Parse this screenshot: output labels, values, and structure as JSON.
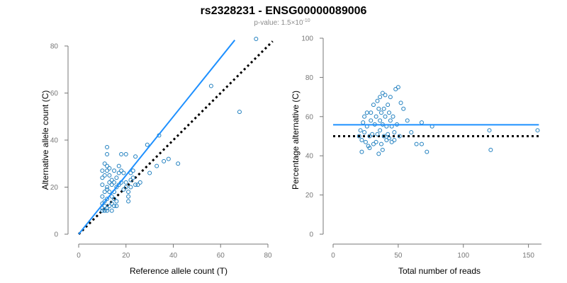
{
  "header": {
    "title": "rs2328231 - ENSG00000089006",
    "pvalue_prefix": "p-value: 1.5×10",
    "pvalue_exponent": "-10"
  },
  "colors": {
    "points": "#1f7fbf",
    "fit_line": "#1e90ff",
    "reference_line": "#000000",
    "axis": "#777777"
  },
  "chart_data": [
    {
      "type": "scatter",
      "title": "",
      "xlabel": "Reference allele count (T)",
      "ylabel": "Alternative allele count (C)",
      "xlim": [
        0,
        80
      ],
      "ylim": [
        0,
        80
      ],
      "xticks": [
        0,
        20,
        40,
        60,
        80
      ],
      "yticks": [
        0,
        20,
        40,
        60,
        80
      ],
      "x_tick_labels": [
        "0",
        "20",
        "40",
        "60",
        "80"
      ],
      "y_tick_labels": [
        "0",
        "20",
        "40",
        "60",
        "80"
      ],
      "points": [
        [
          10,
          10
        ],
        [
          10,
          11
        ],
        [
          11,
          10
        ],
        [
          11,
          12
        ],
        [
          12,
          10
        ],
        [
          12,
          11
        ],
        [
          10,
          13
        ],
        [
          11,
          14
        ],
        [
          13,
          12
        ],
        [
          12,
          15
        ],
        [
          10,
          16
        ],
        [
          11,
          18
        ],
        [
          12,
          20
        ],
        [
          10,
          21
        ],
        [
          10,
          24
        ],
        [
          11,
          25
        ],
        [
          12,
          27
        ],
        [
          10,
          27
        ],
        [
          12,
          29
        ],
        [
          13,
          28
        ],
        [
          11,
          30
        ],
        [
          12,
          34
        ],
        [
          12,
          37
        ],
        [
          13,
          25
        ],
        [
          14,
          23
        ],
        [
          14,
          21
        ],
        [
          13,
          18
        ],
        [
          14,
          16
        ],
        [
          15,
          15
        ],
        [
          14,
          13
        ],
        [
          15,
          12
        ],
        [
          14,
          10
        ],
        [
          15,
          18
        ],
        [
          16,
          20
        ],
        [
          15,
          22
        ],
        [
          16,
          24
        ],
        [
          15,
          27
        ],
        [
          17,
          26
        ],
        [
          17,
          29
        ],
        [
          18,
          27
        ],
        [
          18,
          34
        ],
        [
          20,
          34
        ],
        [
          19,
          26
        ],
        [
          20,
          22
        ],
        [
          20,
          20
        ],
        [
          19,
          19
        ],
        [
          18,
          22
        ],
        [
          17,
          21
        ],
        [
          21,
          18
        ],
        [
          21,
          14
        ],
        [
          21,
          16
        ],
        [
          22,
          20
        ],
        [
          22,
          23
        ],
        [
          23,
          24
        ],
        [
          22,
          26
        ],
        [
          23,
          27
        ],
        [
          24,
          21
        ],
        [
          24,
          33
        ],
        [
          25,
          21
        ],
        [
          26,
          22
        ],
        [
          29,
          38
        ],
        [
          30,
          26
        ],
        [
          33,
          29
        ],
        [
          34,
          42
        ],
        [
          36,
          31
        ],
        [
          38,
          32
        ],
        [
          42,
          30
        ],
        [
          56,
          63
        ],
        [
          68,
          52
        ],
        [
          75,
          83
        ],
        [
          16,
          14
        ],
        [
          13,
          22
        ],
        [
          16,
          12
        ],
        [
          12,
          19
        ]
      ],
      "fit_line": [
        [
          0,
          0
        ],
        [
          66,
          82.5
        ]
      ],
      "reference_line": [
        [
          0,
          0
        ],
        [
          82,
          82
        ]
      ]
    },
    {
      "type": "scatter",
      "title": "",
      "xlabel": "Total number of reads",
      "ylabel": "Percentage alternative (C)",
      "xlim": [
        0,
        160
      ],
      "ylim": [
        0,
        100
      ],
      "xticks": [
        0,
        50,
        100,
        150
      ],
      "yticks": [
        0,
        20,
        40,
        60,
        80,
        100
      ],
      "x_tick_labels": [
        "0",
        "50",
        "100",
        "150"
      ],
      "y_tick_labels": [
        "0",
        "20",
        "40",
        "60",
        "80",
        "100"
      ],
      "points": [
        [
          20,
          50
        ],
        [
          21,
          53
        ],
        [
          22,
          48
        ],
        [
          22,
          42
        ],
        [
          23,
          57
        ],
        [
          24,
          60
        ],
        [
          24,
          52
        ],
        [
          25,
          47
        ],
        [
          26,
          55
        ],
        [
          26,
          62
        ],
        [
          27,
          45
        ],
        [
          28,
          50
        ],
        [
          28,
          44
        ],
        [
          29,
          58
        ],
        [
          29,
          62
        ],
        [
          30,
          51
        ],
        [
          31,
          46
        ],
        [
          31,
          66
        ],
        [
          32,
          56
        ],
        [
          33,
          60
        ],
        [
          33,
          47
        ],
        [
          34,
          68
        ],
        [
          34,
          51
        ],
        [
          35,
          64
        ],
        [
          35,
          41
        ],
        [
          36,
          70
        ],
        [
          36,
          58
        ],
        [
          36,
          53
        ],
        [
          37,
          62
        ],
        [
          37,
          46
        ],
        [
          38,
          56
        ],
        [
          38,
          72
        ],
        [
          38,
          43
        ],
        [
          39,
          50
        ],
        [
          39,
          64
        ],
        [
          40,
          60
        ],
        [
          40,
          71
        ],
        [
          41,
          55
        ],
        [
          41,
          48
        ],
        [
          42,
          51
        ],
        [
          42,
          66
        ],
        [
          43,
          49
        ],
        [
          43,
          62
        ],
        [
          44,
          58
        ],
        [
          44,
          70
        ],
        [
          45,
          55
        ],
        [
          45,
          47
        ],
        [
          46,
          60
        ],
        [
          47,
          52
        ],
        [
          47,
          48
        ],
        [
          48,
          74
        ],
        [
          49,
          56
        ],
        [
          50,
          75
        ],
        [
          51,
          50
        ],
        [
          52,
          67
        ],
        [
          54,
          64
        ],
        [
          57,
          58
        ],
        [
          60,
          52
        ],
        [
          64,
          46
        ],
        [
          68,
          57
        ],
        [
          68,
          46
        ],
        [
          72,
          42
        ],
        [
          76,
          55
        ],
        [
          120,
          53
        ],
        [
          121,
          43
        ],
        [
          157,
          53
        ]
      ],
      "fit_line": [
        [
          0,
          55.8
        ],
        [
          158,
          55.8
        ]
      ],
      "reference_line": [
        [
          0,
          50
        ],
        [
          158,
          50
        ]
      ]
    }
  ]
}
